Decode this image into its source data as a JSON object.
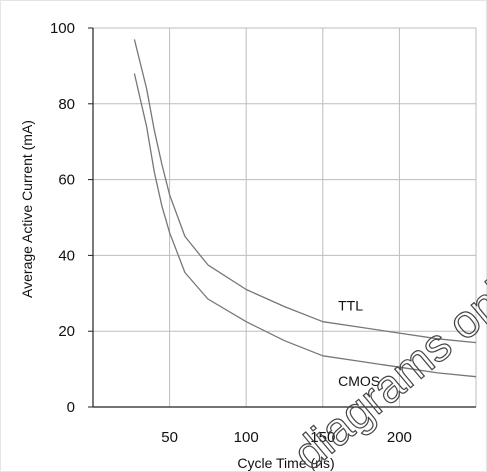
{
  "chart_data": {
    "type": "line",
    "title": "",
    "xlabel": "Cycle Time (ns)",
    "ylabel": "Average Active Current (mA)",
    "xlim": [
      0,
      250
    ],
    "ylim": [
      0,
      100
    ],
    "x_ticks": [
      50,
      100,
      150,
      200
    ],
    "x_tick_labels": [
      "50",
      "100",
      "150",
      "200"
    ],
    "y_ticks": [
      0,
      20,
      40,
      60,
      80,
      100
    ],
    "y_tick_labels": [
      "0",
      "20",
      "40",
      "60",
      "80",
      "100"
    ],
    "grid": true,
    "legend": "none",
    "series": [
      {
        "name": "TTL",
        "color": "#777777",
        "x": [
          27,
          35,
          40,
          45,
          50,
          60,
          75,
          100,
          125,
          150,
          175,
          200,
          225,
          250
        ],
        "y": [
          97,
          84,
          73,
          64,
          56,
          45,
          37.5,
          31,
          26.5,
          22.5,
          21,
          19.5,
          18,
          17
        ]
      },
      {
        "name": "CMOS",
        "color": "#777777",
        "x": [
          27,
          35,
          40,
          45,
          50,
          60,
          75,
          100,
          125,
          150,
          175,
          200,
          225,
          250
        ],
        "y": [
          88,
          74,
          62,
          53,
          46,
          35.5,
          28.5,
          22.5,
          17.5,
          13.5,
          12,
          10.5,
          9,
          8
        ]
      }
    ],
    "series_labels": {
      "TTL": {
        "at_x": 160,
        "at_y": 25.5
      },
      "CMOS": {
        "at_x": 160,
        "at_y": 5.5
      }
    }
  },
  "watermark": {
    "text": "diagrams only",
    "color": "#444444"
  }
}
